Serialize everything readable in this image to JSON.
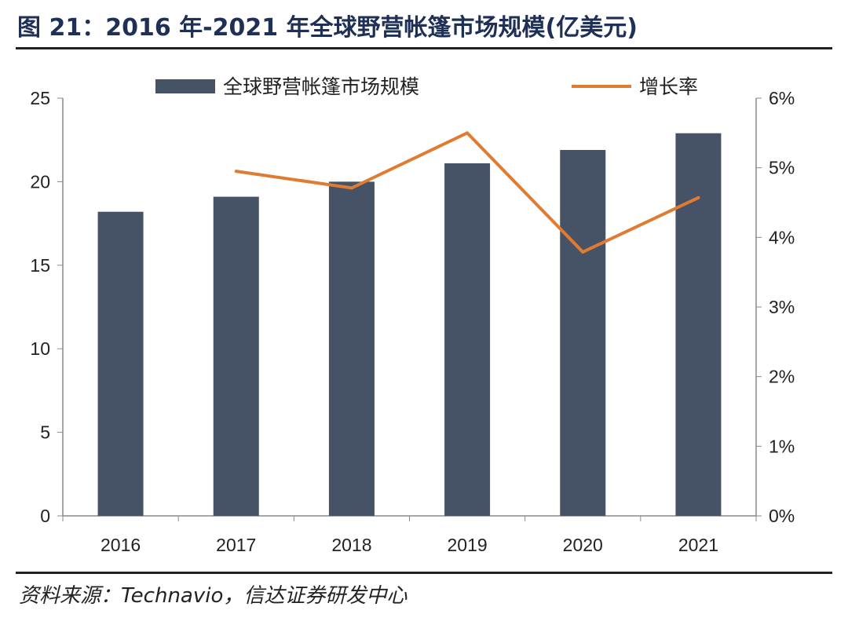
{
  "title": "图 21：2016 年-2021 年全球野营帐篷市场规模(亿美元)",
  "source": "资料来源：Technavio，信达证券研发中心",
  "chart_data": {
    "type": "bar+line",
    "title": "",
    "categories": [
      "2016",
      "2017",
      "2018",
      "2019",
      "2020",
      "2021"
    ],
    "series": [
      {
        "name": "全球野营帐篷市场规模",
        "type": "bar",
        "axis": "left",
        "color": "#465266",
        "values": [
          18.2,
          19.1,
          20.0,
          21.1,
          21.9,
          22.9
        ]
      },
      {
        "name": "增长率",
        "type": "line",
        "axis": "right",
        "color": "#e07b32",
        "values": [
          null,
          4.95,
          4.71,
          5.5,
          3.79,
          4.57
        ]
      }
    ],
    "left_axis": {
      "range": [
        0,
        25
      ],
      "ticks": [
        "0",
        "5",
        "10",
        "15",
        "20",
        "25"
      ]
    },
    "right_axis": {
      "range": [
        0,
        6
      ],
      "ticks": [
        "0%",
        "1%",
        "2%",
        "3%",
        "4%",
        "5%",
        "6%"
      ]
    },
    "legend": "top",
    "grid": false
  }
}
